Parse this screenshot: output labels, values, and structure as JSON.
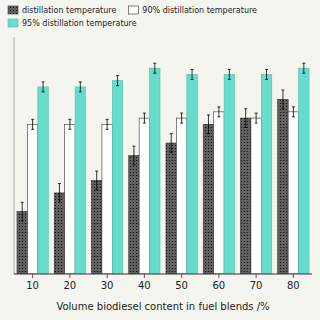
{
  "chart_data": {
    "type": "bar",
    "categories": [
      "10",
      "20",
      "30",
      "40",
      "50",
      "60",
      "70",
      "80"
    ],
    "series": [
      {
        "name": "distillation temperature",
        "color": "#606060",
        "values": [
          330,
          333,
          335,
          339,
          341,
          344,
          345,
          348
        ],
        "errors": [
          1.5,
          1.5,
          1.5,
          1.5,
          1.5,
          1.5,
          1.5,
          1.5
        ]
      },
      {
        "name": "90% distillation temperature",
        "color": "#ffffff",
        "values": [
          344,
          344,
          344,
          345,
          345,
          346,
          345,
          346
        ],
        "errors": [
          0.8,
          0.8,
          0.8,
          0.8,
          0.8,
          0.8,
          0.8,
          0.8
        ]
      },
      {
        "name": "95% distillation temperature",
        "color": "#66ddcc",
        "values": [
          350,
          350,
          351,
          353,
          352,
          352,
          352,
          353
        ],
        "errors": [
          0.8,
          0.8,
          0.8,
          0.8,
          0.8,
          0.8,
          0.8,
          0.8
        ]
      }
    ],
    "xlabel": "Volume biodiesel content in fuel blends /%",
    "ylim": [
      320,
      358
    ],
    "tick_labels": "x",
    "legend": "top"
  }
}
